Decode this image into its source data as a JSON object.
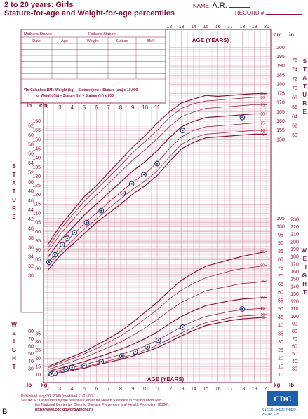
{
  "header": {
    "title_line1": "2 to 20 years: Girls",
    "title_line2": "Stature-for-age and Weight-for-age percentiles",
    "name_label": "NAME",
    "name_value": "A.R.",
    "record_label": "RECORD #"
  },
  "table": {
    "mothers_stature": "Mother's Stature",
    "fathers_stature": "Father's Stature",
    "columns": [
      "Date",
      "Age",
      "Weight",
      "Stature",
      "BMI*"
    ],
    "bmi_line1": "*To Calculate BMI: Weight (kg) ÷ Stature (cm) ÷ Stature (cm) x 10,000",
    "bmi_line2": "or Weight (lb) ÷ Stature (in) ÷ Stature (in) x 703"
  },
  "labels": {
    "age_years": "AGE (YEARS)",
    "stature_vertical": [
      "S",
      "T",
      "A",
      "T",
      "U",
      "R",
      "E"
    ],
    "weight_vertical": [
      "W",
      "E",
      "I",
      "G",
      "H",
      "T"
    ],
    "in": "in",
    "cm": "cm",
    "kg": "kg",
    "lb": "lb",
    "panel_letter": "B"
  },
  "footer": {
    "line1": "Published May 30, 2000 (modified 11/21/00).",
    "line2": "SOURCE: Developed by the National Center for Health Statistics in collaboration with",
    "line3": "the National Center for Chronic Disease Prevention and Health Promotion (2000).",
    "line4": "http://www.cdc.gov/growthcharts",
    "logo": "CDC",
    "tagline": "SAFER · HEALTHIER · PEOPLE™"
  },
  "colors": {
    "chart": "#8a1538",
    "grid": "#d59aab",
    "point": "#1f2a66"
  },
  "chart_data": {
    "type": "line",
    "x_label": "AGE (YEARS)",
    "x_ticks": [
      2,
      3,
      4,
      5,
      6,
      7,
      8,
      9,
      10,
      11,
      12,
      13,
      14,
      15,
      16,
      17,
      18,
      19,
      20
    ],
    "stature": {
      "y_unit": "cm",
      "cm_ticks": [
        80,
        85,
        90,
        95,
        100,
        105,
        110,
        115,
        120,
        125,
        130,
        135,
        140,
        145,
        150,
        155,
        160,
        165,
        170,
        175,
        180,
        185,
        190,
        195,
        200
      ],
      "in_ticks": [
        30,
        32,
        34,
        36,
        38,
        40,
        42,
        44,
        46,
        48,
        50,
        52,
        54,
        56,
        58,
        60,
        62,
        64,
        66,
        68,
        70,
        72,
        74,
        76
      ],
      "percentiles": [
        95,
        90,
        75,
        50,
        25,
        10,
        5
      ],
      "points": [
        [
          2.1,
          83.5
        ],
        [
          2.6,
          87.5
        ],
        [
          3.2,
          93
        ],
        [
          3.6,
          96.5
        ],
        [
          4.2,
          99.5
        ],
        [
          5.2,
          105
        ],
        [
          6.4,
          111.5
        ],
        [
          8.2,
          121
        ],
        [
          8.9,
          126
        ],
        [
          9.9,
          131
        ],
        [
          11.0,
          137
        ],
        [
          13.1,
          155
        ],
        [
          18.0,
          162
        ]
      ]
    },
    "weight": {
      "y_unit": "kg",
      "kg_ticks": [
        10,
        15,
        20,
        25,
        30,
        35,
        40,
        45,
        50,
        55,
        60,
        65,
        70,
        75,
        80,
        85,
        90,
        95,
        100,
        105
      ],
      "lb_ticks": [
        30,
        40,
        50,
        60,
        70,
        80,
        90,
        100,
        110,
        120,
        130,
        140,
        150,
        160,
        170,
        180,
        190,
        200,
        210,
        220,
        230
      ],
      "percentiles": [
        95,
        90,
        75,
        50,
        25,
        10,
        5
      ],
      "points": [
        [
          2.3,
          10.5
        ],
        [
          2.6,
          11
        ],
        [
          3.5,
          13.5
        ],
        [
          4.0,
          14.5
        ],
        [
          5.0,
          15.5
        ],
        [
          6.4,
          18
        ],
        [
          8.1,
          21.5
        ],
        [
          9.2,
          24
        ],
        [
          10.2,
          27
        ],
        [
          11.1,
          31
        ],
        [
          13.1,
          39
        ],
        [
          18.0,
          50
        ]
      ]
    }
  }
}
